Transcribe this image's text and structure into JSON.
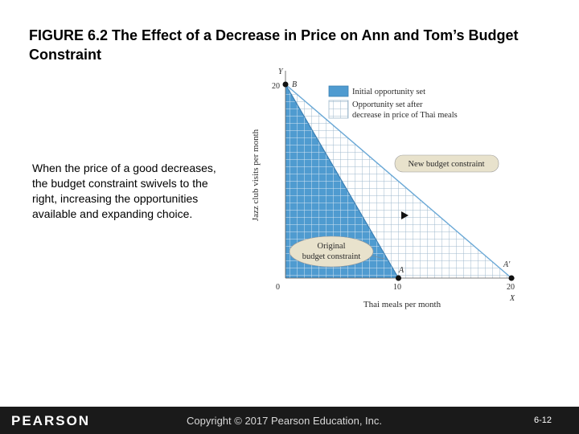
{
  "title": "FIGURE 6.2  The Effect of a Decrease in Price on Ann and Tom’s Budget Constraint",
  "caption": "When the price of a good decreases, the budget constraint swivels to the right, increasing the opportunities available and expanding choice.",
  "chart_data": {
    "type": "area",
    "xlabel": "Thai meals per month",
    "ylabel": "Jazz club visits per month",
    "x_axis_letter": "X",
    "y_axis_letter": "Y",
    "xlim": [
      0,
      20
    ],
    "ylim": [
      0,
      20
    ],
    "x_ticks": [
      "0",
      "10",
      "20"
    ],
    "y_ticks": [
      "20"
    ],
    "original_constraint": {
      "x_intercept": 10,
      "y_intercept": 20
    },
    "new_constraint": {
      "x_intercept": 20,
      "y_intercept": 20
    },
    "points": [
      {
        "label": "B",
        "x": 0,
        "y": 20
      },
      {
        "label": "A",
        "x": 10,
        "y": 0
      },
      {
        "label": "A'",
        "x": 20,
        "y": 0
      }
    ],
    "legend": [
      {
        "label": "Initial opportunity set",
        "color": "#4f9bd0"
      },
      {
        "label_lines": [
          "Opportunity set after",
          "decrease in price of Thai meals"
        ],
        "color": "#ffffff"
      }
    ],
    "annotations": {
      "new_budget_constraint": "New budget constraint",
      "original_budget_constraint": [
        "Original",
        "budget constraint"
      ]
    },
    "colors": {
      "initial_set": "#4f9bd0",
      "grid": "#9fb9cc",
      "line": "#6aa8d6",
      "bubble": "#e8e2cc"
    }
  },
  "footer": {
    "brand": "PEARSON",
    "copyright": "Copyright © 2017 Pearson Education, Inc.",
    "slide_number": "6-12"
  }
}
